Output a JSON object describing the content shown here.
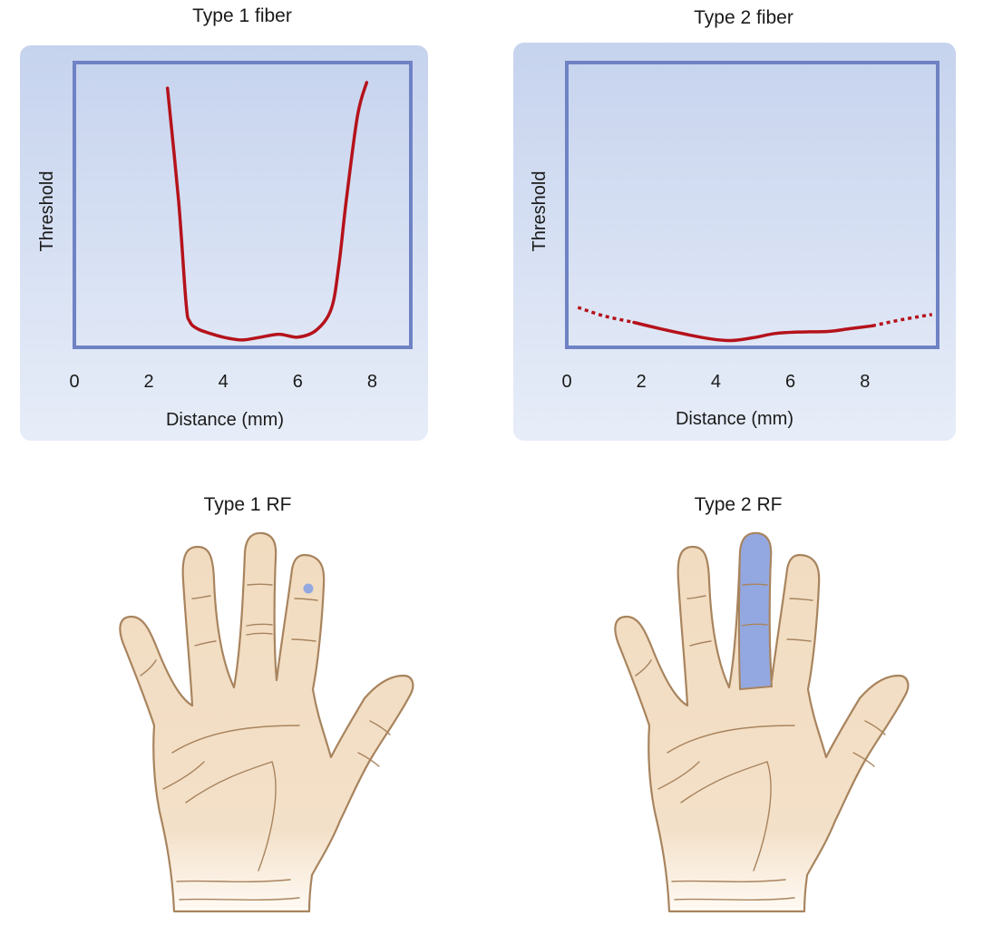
{
  "figure": {
    "colors": {
      "curve": "#b5121b",
      "frame": "#6f82c4",
      "panel_top": "#c6d3ee",
      "panel_bottom": "#e7edf8",
      "rf_fill": "#93a8e0",
      "skin": "#f2dcc0",
      "skin_outline": "#a8845e"
    }
  },
  "chart_data": [
    {
      "type": "line",
      "title": "Type 1 fiber",
      "xlabel": "Distance (mm)",
      "ylabel": "Threshold",
      "xlim": [
        0,
        9
      ],
      "ylim": [
        0,
        10
      ],
      "xticks": [
        "0",
        "2",
        "4",
        "6",
        "8"
      ],
      "grid": false,
      "series": [
        {
          "style": "solid",
          "x": [
            2.5,
            2.8,
            3.0,
            3.1,
            3.3,
            3.6,
            4.0,
            4.5,
            5.0,
            5.5,
            6.0,
            6.5,
            6.9,
            7.1,
            7.3,
            7.6,
            7.85
          ],
          "y": [
            9.0,
            5.0,
            1.4,
            0.75,
            0.5,
            0.35,
            0.2,
            0.1,
            0.2,
            0.3,
            0.2,
            0.45,
            1.2,
            2.7,
            5.0,
            8.0,
            9.2
          ]
        }
      ]
    },
    {
      "type": "line",
      "title": "Type 2 fiber",
      "xlabel": "Distance (mm)",
      "ylabel": "Threshold",
      "xlim": [
        0,
        10
      ],
      "ylim": [
        0,
        10
      ],
      "xticks": [
        "0",
        "2",
        "4",
        "6",
        "8"
      ],
      "grid": false,
      "series": [
        {
          "style": "dotted",
          "x": [
            0.3,
            1.0,
            1.8
          ],
          "y": [
            1.25,
            0.95,
            0.72
          ]
        },
        {
          "style": "solid",
          "x": [
            1.8,
            2.5,
            3.2,
            3.8,
            4.4,
            5.0,
            5.6,
            6.2,
            7.0,
            7.6,
            8.2
          ],
          "y": [
            0.72,
            0.5,
            0.3,
            0.15,
            0.08,
            0.18,
            0.33,
            0.38,
            0.4,
            0.5,
            0.6
          ]
        },
        {
          "style": "dotted",
          "x": [
            8.2,
            9.0,
            9.8
          ],
          "y": [
            0.6,
            0.82,
            1.0
          ]
        }
      ]
    }
  ],
  "hands": [
    {
      "title": "Type 1 RF",
      "receptive_field": "small spot on fingertip"
    },
    {
      "title": "Type 2 RF",
      "receptive_field": "whole middle finger"
    }
  ]
}
